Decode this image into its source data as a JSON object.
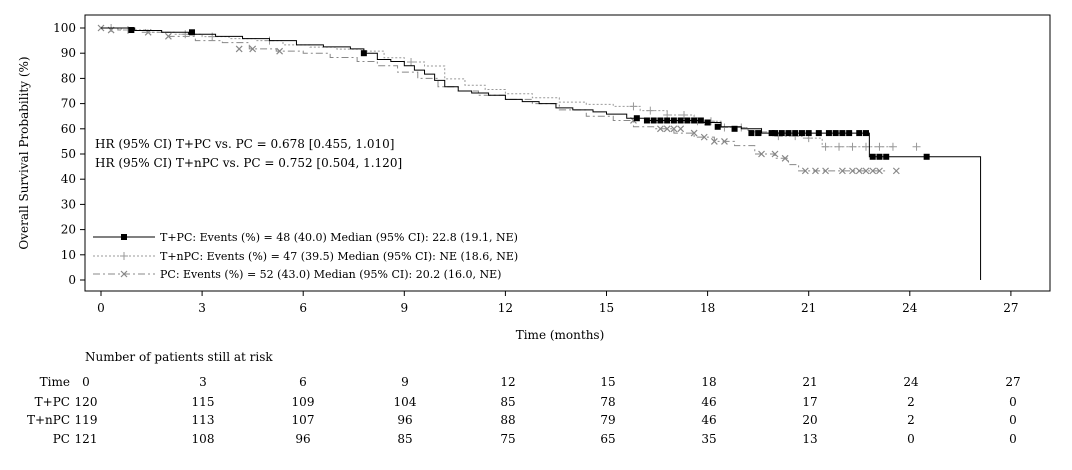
{
  "chart_data": {
    "type": "line",
    "subtype": "kaplan-meier",
    "xlabel": "Time (months)",
    "ylabel": "Overall Survival Probability (%)",
    "xlim": [
      0,
      28
    ],
    "ylim": [
      0,
      100
    ],
    "x_ticks": [
      0,
      3,
      6,
      9,
      12,
      15,
      18,
      21,
      24,
      27
    ],
    "y_ticks": [
      0,
      10,
      20,
      30,
      40,
      50,
      60,
      70,
      80,
      90,
      100
    ],
    "grid": false,
    "annotations": [
      "HR (95% CI) T+PC vs. PC = 0.678 [0.455, 1.010]",
      "HR (95% CI) T+nPC vs. PC = 0.752 [0.504, 1.120]"
    ],
    "legend_position": "bottom-left",
    "series": [
      {
        "name": "T+PC",
        "legend": "T+PC: Events (%) = 48 (40.0) Median (95% CI): 22.8 (19.1, NE)",
        "color": "#000000",
        "line_style": "solid",
        "marker": "square",
        "x": [
          0,
          1.0,
          1.8,
          2.6,
          3.4,
          4.2,
          5.0,
          5.8,
          6.6,
          7.4,
          7.8,
          8.2,
          8.6,
          9.0,
          9.3,
          9.6,
          9.9,
          10.2,
          10.6,
          11.0,
          11.5,
          12.0,
          12.5,
          13.0,
          13.5,
          14.0,
          14.6,
          15.0,
          15.6,
          16.2,
          17.0,
          17.8,
          18.4,
          19.0,
          19.6,
          20.2,
          22.0,
          22.8,
          26.1,
          26.1
        ],
        "y": [
          100,
          99,
          98.3,
          97.5,
          96.7,
          95.8,
          95,
          93.3,
          92.5,
          91.7,
          90,
          87.5,
          86.7,
          85,
          83.3,
          81.7,
          79.2,
          76.7,
          75,
          74.2,
          73.3,
          71.7,
          70.8,
          70,
          68.3,
          67.5,
          66.7,
          65.8,
          64.2,
          63.3,
          63.3,
          62.5,
          60.8,
          60,
          58.3,
          58.3,
          58.3,
          48.9,
          48.9,
          0
        ],
        "censored_x": [
          0.9,
          2.7,
          7.8,
          15.9,
          16.2,
          16.4,
          16.6,
          16.8,
          17.0,
          17.2,
          17.4,
          17.6,
          17.8,
          18.0,
          18.3,
          18.8,
          19.3,
          19.5,
          19.9,
          20.0,
          20.2,
          20.4,
          20.6,
          20.8,
          21.0,
          21.3,
          21.6,
          21.8,
          22.0,
          22.2,
          22.5,
          22.7,
          22.9,
          23.1,
          23.3,
          24.5
        ],
        "censored_y": [
          99.2,
          98.3,
          90,
          64.2,
          63.3,
          63.3,
          63.3,
          63.3,
          63.3,
          63.3,
          63.3,
          63.3,
          63.3,
          62.5,
          60.8,
          60,
          58.3,
          58.3,
          58.3,
          58.3,
          58.3,
          58.3,
          58.3,
          58.3,
          58.3,
          58.3,
          58.3,
          58.3,
          58.3,
          58.3,
          58.3,
          58.3,
          48.9,
          48.9,
          48.9,
          48.9
        ]
      },
      {
        "name": "T+nPC",
        "legend": "T+nPC: Events (%) = 47 (39.5) Median (95% CI): NE (18.6, NE)",
        "color": "#999999",
        "line_style": "dotted",
        "marker": "plus",
        "x": [
          0,
          0.6,
          1.4,
          2.2,
          3.0,
          3.8,
          4.6,
          5.4,
          6.2,
          7.0,
          7.8,
          8.4,
          9.0,
          9.6,
          10.2,
          10.8,
          11.4,
          12.0,
          12.8,
          13.6,
          14.4,
          15.2,
          16.0,
          16.8,
          17.6,
          18.4,
          19.2,
          20.0,
          20.8,
          21.4,
          23.5
        ],
        "y": [
          100,
          99.2,
          98.3,
          97.5,
          96.6,
          95.8,
          95,
          93.3,
          92.4,
          91.6,
          90.8,
          88.2,
          86.5,
          84.9,
          79.8,
          77.3,
          75.6,
          73.9,
          72.3,
          70.6,
          69.7,
          68.9,
          67.2,
          65.5,
          63,
          60.5,
          58.8,
          57.1,
          56.3,
          52.9,
          52.9
        ],
        "censored_x": [
          0.3,
          0.8,
          2.5,
          3.3,
          5.0,
          9.2,
          15.8,
          16.3,
          16.8,
          17.3,
          17.7,
          18.1,
          18.5,
          19.0,
          19.6,
          20.1,
          20.6,
          21.0,
          21.5,
          21.9,
          22.3,
          22.7,
          23.1,
          23.5,
          24.2
        ],
        "censored_y": [
          100,
          99.2,
          97.5,
          96.6,
          95,
          86.5,
          68.9,
          67.2,
          65.5,
          65.5,
          63,
          63,
          60.5,
          60.5,
          58.8,
          57.1,
          57.1,
          56.3,
          52.9,
          52.9,
          52.9,
          52.9,
          52.9,
          52.9,
          52.9
        ]
      },
      {
        "name": "PC",
        "legend": "PC: Events (%) = 52 (43.0) Median (95% CI): 20.2 (16.0, NE)",
        "color": "#888888",
        "line_style": "dashed",
        "marker": "x",
        "x": [
          0,
          0.5,
          1.2,
          2.0,
          2.8,
          3.6,
          4.4,
          5.2,
          6.0,
          6.8,
          7.6,
          8.2,
          8.8,
          9.4,
          10.0,
          10.6,
          11.2,
          12.0,
          12.8,
          13.6,
          14.4,
          15.2,
          15.8,
          16.4,
          17.0,
          17.6,
          18.2,
          18.8,
          19.4,
          20.0,
          20.4,
          20.7,
          23.3
        ],
        "y": [
          100,
          99.2,
          98.3,
          96.7,
          95,
          94.2,
          91.7,
          90.8,
          90,
          88.3,
          86.7,
          85,
          82.5,
          80,
          76.7,
          75,
          73.3,
          71.7,
          70,
          67.5,
          65,
          63.3,
          60.8,
          60,
          58.3,
          56.7,
          55,
          53.3,
          50,
          48.3,
          45.8,
          43.3,
          43.3
        ],
        "censored_x": [
          0.0,
          0.3,
          1.4,
          2.0,
          4.1,
          4.5,
          5.3,
          15.8,
          16.6,
          16.8,
          17.0,
          17.2,
          17.6,
          17.9,
          18.2,
          18.5,
          19.6,
          20.0,
          20.3,
          20.9,
          21.2,
          21.5,
          22.0,
          22.3,
          22.5,
          22.7,
          22.9,
          23.1,
          23.6
        ],
        "censored_y": [
          100,
          99.2,
          98.3,
          96.7,
          91.7,
          91.7,
          90.8,
          63.3,
          60,
          60,
          60,
          60,
          58.3,
          56.7,
          55,
          55,
          50,
          50,
          48.3,
          43.3,
          43.3,
          43.3,
          43.3,
          43.3,
          43.3,
          43.3,
          43.3,
          43.3,
          43.3
        ]
      }
    ]
  },
  "risk_table": {
    "title": "Number of patients still at risk",
    "header_label": "Time",
    "times": [
      "0",
      "3",
      "6",
      "9",
      "12",
      "15",
      "18",
      "21",
      "24",
      "27"
    ],
    "rows": [
      {
        "label": "T+PC",
        "values": [
          "120",
          "115",
          "109",
          "104",
          "85",
          "78",
          "46",
          "17",
          "2",
          "0"
        ]
      },
      {
        "label": "T+nPC",
        "values": [
          "119",
          "113",
          "107",
          "96",
          "88",
          "79",
          "46",
          "20",
          "2",
          "0"
        ]
      },
      {
        "label": "PC",
        "values": [
          "121",
          "108",
          "96",
          "85",
          "75",
          "65",
          "35",
          "13",
          "0",
          "0"
        ]
      }
    ]
  }
}
